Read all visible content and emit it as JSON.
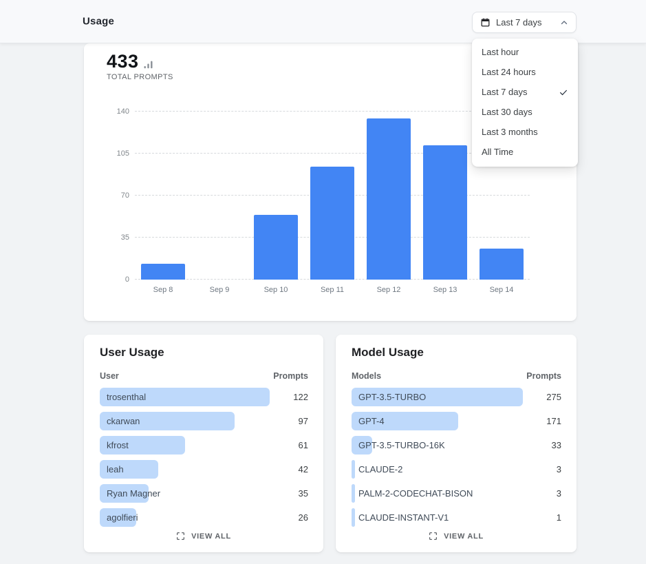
{
  "header": {
    "title": "Usage",
    "date_range": {
      "selected": "Last 7 days",
      "options": [
        {
          "label": "Last hour",
          "selected": false
        },
        {
          "label": "Last 24 hours",
          "selected": false
        },
        {
          "label": "Last 7 days",
          "selected": true
        },
        {
          "label": "Last 30 days",
          "selected": false
        },
        {
          "label": "Last 3 months",
          "selected": false
        },
        {
          "label": "All Time",
          "selected": false
        }
      ]
    }
  },
  "stats": {
    "total_prompts": "433",
    "total_prompts_label": "TOTAL PROMPTS"
  },
  "chart_data": {
    "type": "bar",
    "title": "",
    "categories": [
      "Sep 8",
      "Sep 9",
      "Sep 10",
      "Sep 11",
      "Sep 12",
      "Sep 13",
      "Sep 14"
    ],
    "values": [
      13,
      0,
      54,
      94,
      134,
      112,
      26
    ],
    "xlabel": "",
    "ylabel": "",
    "ylim": [
      0,
      140
    ],
    "yticks": [
      0,
      35,
      70,
      105,
      140
    ],
    "grid": true,
    "legend": false,
    "bar_color": "#4285f4"
  },
  "user_usage": {
    "title": "User Usage",
    "col_left": "User",
    "col_right": "Prompts",
    "rows": [
      {
        "label": "trosenthal",
        "value": 122
      },
      {
        "label": "ckarwan",
        "value": 97
      },
      {
        "label": "kfrost",
        "value": 61
      },
      {
        "label": "leah",
        "value": 42
      },
      {
        "label": "Ryan Magner",
        "value": 35
      },
      {
        "label": "agolfieri",
        "value": 26
      }
    ],
    "view_all": "VIEW ALL"
  },
  "model_usage": {
    "title": "Model Usage",
    "col_left": "Models",
    "col_right": "Prompts",
    "rows": [
      {
        "label": "GPT-3.5-TURBO",
        "value": 275
      },
      {
        "label": "GPT-4",
        "value": 171
      },
      {
        "label": "GPT-3.5-TURBO-16K",
        "value": 33
      },
      {
        "label": "CLAUDE-2",
        "value": 3
      },
      {
        "label": "PALM-2-CODECHAT-BISON",
        "value": 3
      },
      {
        "label": "CLAUDE-INSTANT-V1",
        "value": 1
      }
    ],
    "view_all": "VIEW ALL"
  },
  "colors": {
    "primary_blue": "#4285f4",
    "light_blue": "#bed9fb",
    "page_background": "#f1f3f5",
    "header_background": "#f8f9fb"
  }
}
